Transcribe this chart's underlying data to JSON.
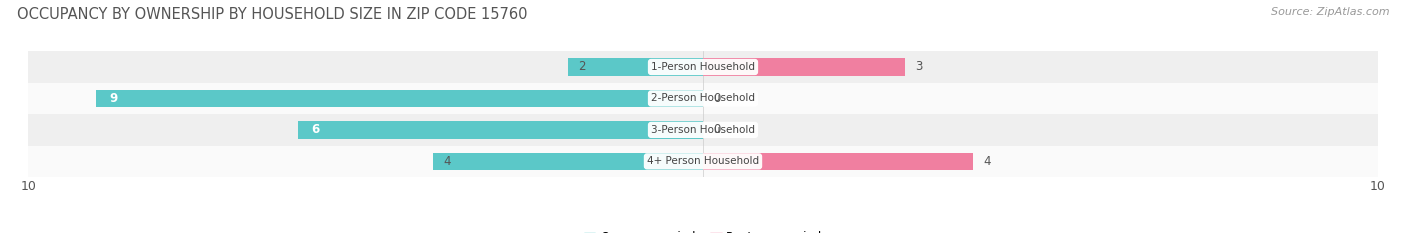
{
  "title": "OCCUPANCY BY OWNERSHIP BY HOUSEHOLD SIZE IN ZIP CODE 15760",
  "source": "Source: ZipAtlas.com",
  "categories": [
    "1-Person Household",
    "2-Person Household",
    "3-Person Household",
    "4+ Person Household"
  ],
  "owner_values": [
    2,
    9,
    6,
    4
  ],
  "renter_values": [
    3,
    0,
    0,
    4
  ],
  "owner_color": "#5bc8c8",
  "renter_color": "#f07fa0",
  "row_bg_even": "#efefef",
  "row_bg_odd": "#fafafa",
  "xlim": [
    -10,
    10
  ],
  "title_fontsize": 10.5,
  "source_fontsize": 8,
  "bar_height": 0.55,
  "figsize": [
    14.06,
    2.33
  ],
  "dpi": 100
}
